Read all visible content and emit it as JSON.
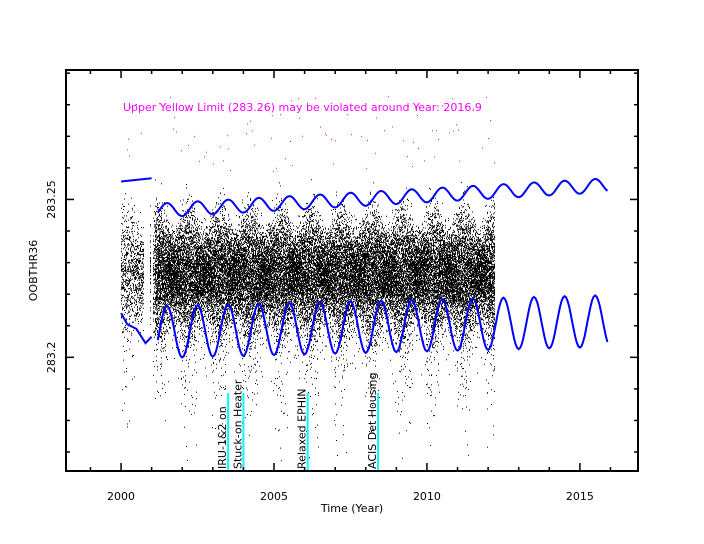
{
  "chart_data": {
    "type": "scatter",
    "title": "",
    "xlabel": "Time (Year)",
    "ylabel": "OOBTHR36",
    "xlim": [
      1998.2,
      2016.9
    ],
    "ylim": [
      283.164,
      283.291
    ],
    "x_ticks": [
      2000,
      2005,
      2010,
      2015
    ],
    "x_tick_labels": [
      "2000",
      "2005",
      "2010",
      "2015"
    ],
    "y_ticks": [
      283.2,
      283.25
    ],
    "y_tick_labels": [
      "283.2",
      "283.25"
    ],
    "grid": false,
    "warning_text": "Upper Yellow  Limit (283.26) may be violated around Year: 2016.9",
    "colors": {
      "data": "#000000",
      "outlier": "#ff00ff",
      "envelope": "#0000ff",
      "event": "#00ffff",
      "axis": "#000000"
    },
    "data_description_range": {
      "x_start": 2000.0,
      "x_end": 2012.2,
      "y_center": 283.227,
      "y_spread_core": 0.015
    },
    "series": [
      {
        "name": "upper envelope (early)",
        "x": [
          2000.0,
          2001.0
        ],
        "y": [
          283.2557,
          283.2567
        ]
      },
      {
        "name": "upper envelope",
        "period": 1.0,
        "x_start": 2001.2,
        "x_end": 2015.9,
        "mean_start": 283.2465,
        "mean_end": 283.2545,
        "amplitude": 0.0022
      },
      {
        "name": "lower envelope (early)",
        "x": [
          2000.0,
          2000.2,
          2000.5,
          2000.8,
          2001.0
        ],
        "y": [
          283.214,
          283.2105,
          283.209,
          283.2045,
          283.2065
        ]
      },
      {
        "name": "lower envelope",
        "period": 1.0,
        "x_start": 2001.2,
        "x_end": 2015.9,
        "mean_start": 283.208,
        "mean_end": 283.2115,
        "amplitude": 0.0082
      }
    ],
    "events": [
      {
        "label": "IRU-1&2 on",
        "x": 2003.5
      },
      {
        "label": "Stuck-on Heater",
        "x": 2004.0
      },
      {
        "label": "Relaxed EPHIN",
        "x": 2006.1
      },
      {
        "label": "ACIS Det Housing",
        "x": 2008.4
      }
    ]
  }
}
